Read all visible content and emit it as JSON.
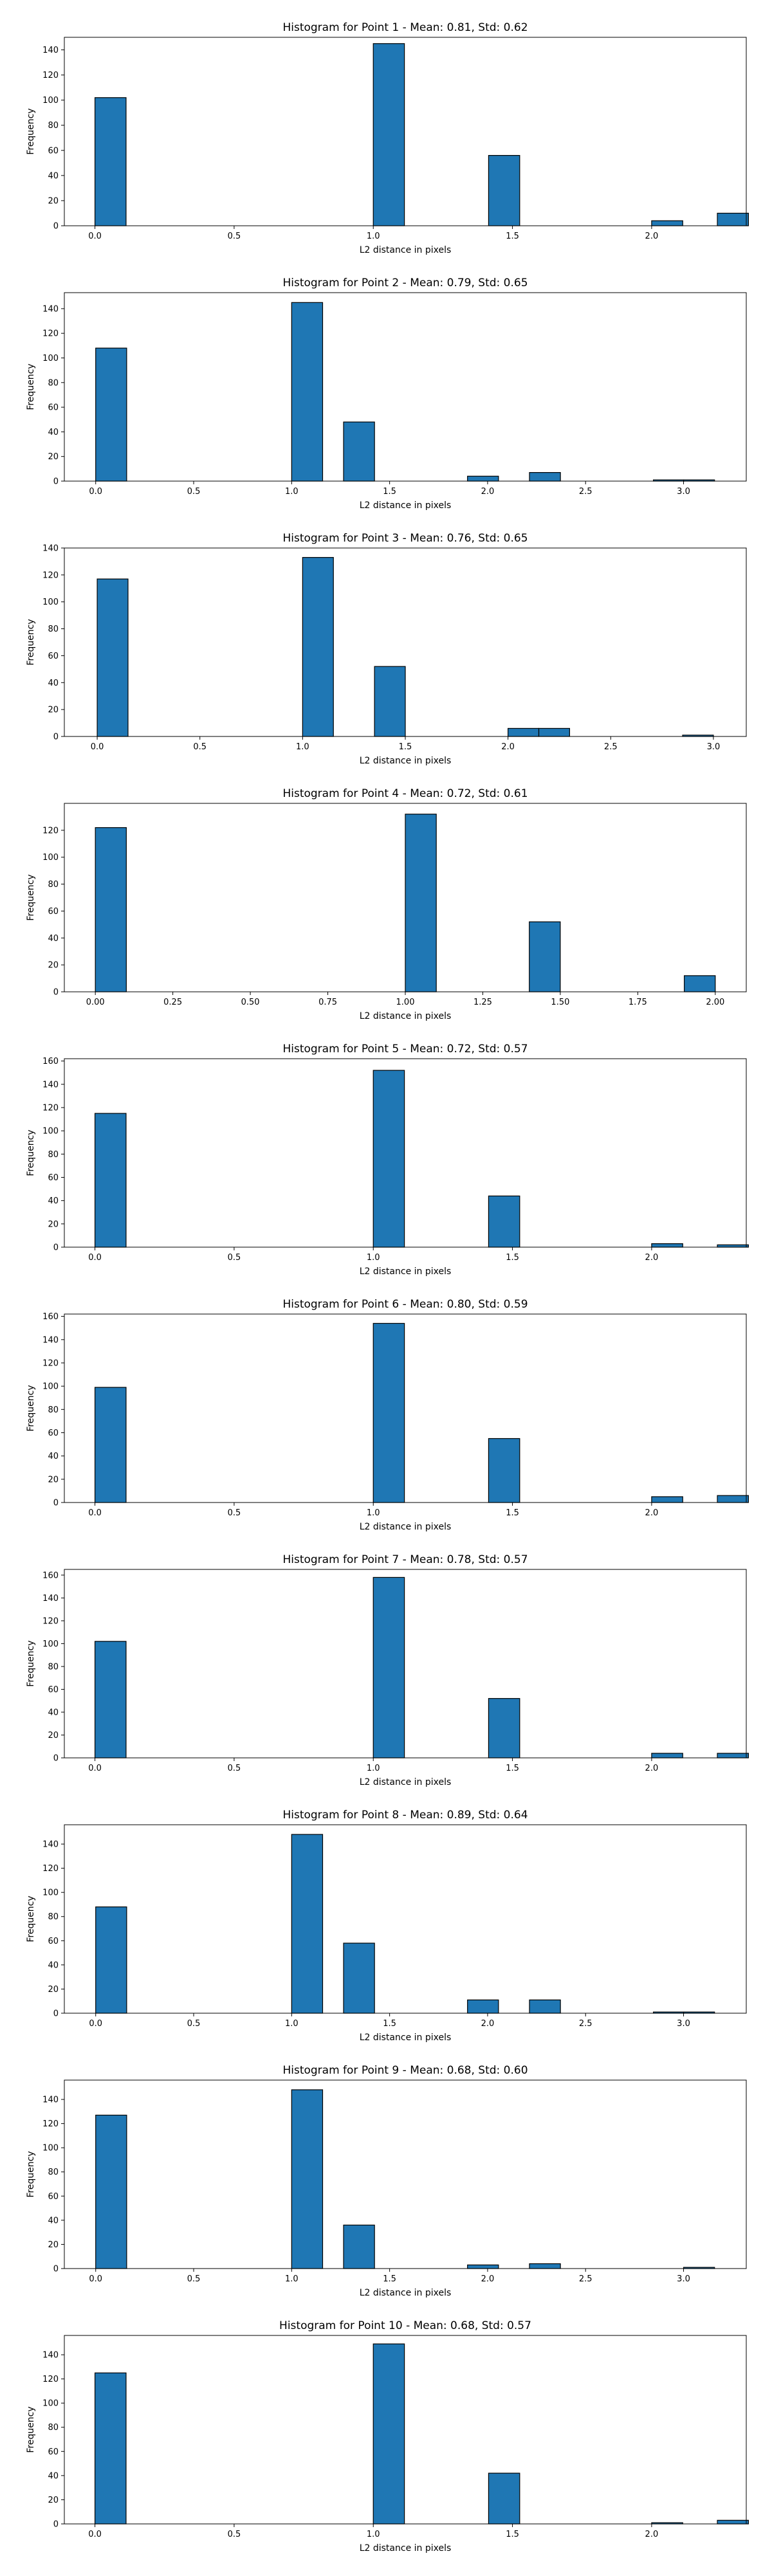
{
  "colors": {
    "bar_fill": "#1f77b4",
    "bar_edge": "#000000"
  },
  "chart_data": [
    {
      "type": "bar",
      "title": "Histogram for Point 1 - Mean: 0.81, Std: 0.62",
      "xlabel": "L2 distance in pixels",
      "ylabel": "Frequency",
      "xlim": [
        -0.11,
        2.34
      ],
      "ylim": [
        0,
        150
      ],
      "xticks": [
        0.0,
        0.5,
        1.0,
        1.5,
        2.0
      ],
      "xtick_labels": [
        "0.0",
        "0.5",
        "1.0",
        "1.5",
        "2.0"
      ],
      "yticks": [
        0,
        20,
        40,
        60,
        80,
        100,
        120,
        140
      ],
      "bar_width": 0.1118,
      "bars": [
        {
          "x": 0.0,
          "y": 102
        },
        {
          "x": 1.0,
          "y": 145
        },
        {
          "x": 1.4142,
          "y": 56
        },
        {
          "x": 2.0,
          "y": 4
        },
        {
          "x": 2.2361,
          "y": 10
        }
      ]
    },
    {
      "type": "bar",
      "title": "Histogram for Point 2 - Mean: 0.79, Std: 0.65",
      "xlabel": "L2 distance in pixels",
      "ylabel": "Frequency",
      "xlim": [
        -0.16,
        3.32
      ],
      "ylim": [
        0,
        153
      ],
      "xticks": [
        0.0,
        0.5,
        1.0,
        1.5,
        2.0,
        2.5,
        3.0
      ],
      "xtick_labels": [
        "0.0",
        "0.5",
        "1.0",
        "1.5",
        "2.0",
        "2.5",
        "3.0"
      ],
      "yticks": [
        0,
        20,
        40,
        60,
        80,
        100,
        120,
        140
      ],
      "bar_width": 0.1581,
      "bars": [
        {
          "x": 0.0,
          "y": 108
        },
        {
          "x": 1.0,
          "y": 145
        },
        {
          "x": 1.2649,
          "y": 48
        },
        {
          "x": 1.8974,
          "y": 4
        },
        {
          "x": 2.2136,
          "y": 7
        },
        {
          "x": 2.846,
          "y": 1
        },
        {
          "x": 3.0,
          "y": 1
        }
      ]
    },
    {
      "type": "bar",
      "title": "Histogram for Point 3 - Mean: 0.76, Std: 0.65",
      "xlabel": "L2 distance in pixels",
      "ylabel": "Frequency",
      "xlim": [
        -0.16,
        3.16
      ],
      "ylim": [
        0,
        140
      ],
      "xticks": [
        0.0,
        0.5,
        1.0,
        1.5,
        2.0,
        2.5,
        3.0
      ],
      "xtick_labels": [
        "0.0",
        "0.5",
        "1.0",
        "1.5",
        "2.0",
        "2.5",
        "3.0"
      ],
      "yticks": [
        0,
        20,
        40,
        60,
        80,
        100,
        120,
        140
      ],
      "bar_width": 0.15,
      "bars": [
        {
          "x": 0.0,
          "y": 117
        },
        {
          "x": 1.0,
          "y": 133
        },
        {
          "x": 1.35,
          "y": 52
        },
        {
          "x": 2.0,
          "y": 6
        },
        {
          "x": 2.15,
          "y": 6
        },
        {
          "x": 2.85,
          "y": 1
        }
      ]
    },
    {
      "type": "bar",
      "title": "Histogram for Point 4 - Mean: 0.72, Std: 0.61",
      "xlabel": "L2 distance in pixels",
      "ylabel": "Frequency",
      "xlim": [
        -0.1,
        2.1
      ],
      "ylim": [
        0,
        140
      ],
      "xticks": [
        0.0,
        0.25,
        0.5,
        0.75,
        1.0,
        1.25,
        1.5,
        1.75,
        2.0
      ],
      "xtick_labels": [
        "0.00",
        "0.25",
        "0.50",
        "0.75",
        "1.00",
        "1.25",
        "1.50",
        "1.75",
        "2.00"
      ],
      "yticks": [
        0,
        20,
        40,
        60,
        80,
        100,
        120
      ],
      "bar_width": 0.1,
      "bars": [
        {
          "x": 0.0,
          "y": 122
        },
        {
          "x": 1.0,
          "y": 132
        },
        {
          "x": 1.4,
          "y": 52
        },
        {
          "x": 1.9,
          "y": 12
        }
      ]
    },
    {
      "type": "bar",
      "title": "Histogram for Point 5 - Mean: 0.72, Std: 0.57",
      "xlabel": "L2 distance in pixels",
      "ylabel": "Frequency",
      "xlim": [
        -0.11,
        2.34
      ],
      "ylim": [
        0,
        162
      ],
      "xticks": [
        0.0,
        0.5,
        1.0,
        1.5,
        2.0
      ],
      "xtick_labels": [
        "0.0",
        "0.5",
        "1.0",
        "1.5",
        "2.0"
      ],
      "yticks": [
        0,
        20,
        40,
        60,
        80,
        100,
        120,
        140,
        160
      ],
      "bar_width": 0.1118,
      "bars": [
        {
          "x": 0.0,
          "y": 115
        },
        {
          "x": 1.0,
          "y": 152
        },
        {
          "x": 1.4142,
          "y": 44
        },
        {
          "x": 2.0,
          "y": 3
        },
        {
          "x": 2.2361,
          "y": 2
        }
      ]
    },
    {
      "type": "bar",
      "title": "Histogram for Point 6 - Mean: 0.80, Std: 0.59",
      "xlabel": "L2 distance in pixels",
      "ylabel": "Frequency",
      "xlim": [
        -0.11,
        2.34
      ],
      "ylim": [
        0,
        162
      ],
      "xticks": [
        0.0,
        0.5,
        1.0,
        1.5,
        2.0
      ],
      "xtick_labels": [
        "0.0",
        "0.5",
        "1.0",
        "1.5",
        "2.0"
      ],
      "yticks": [
        0,
        20,
        40,
        60,
        80,
        100,
        120,
        140,
        160
      ],
      "bar_width": 0.1118,
      "bars": [
        {
          "x": 0.0,
          "y": 99
        },
        {
          "x": 1.0,
          "y": 154
        },
        {
          "x": 1.4142,
          "y": 55
        },
        {
          "x": 2.0,
          "y": 5
        },
        {
          "x": 2.2361,
          "y": 6
        }
      ]
    },
    {
      "type": "bar",
      "title": "Histogram for Point 7 - Mean: 0.78, Std: 0.57",
      "xlabel": "L2 distance in pixels",
      "ylabel": "Frequency",
      "xlim": [
        -0.11,
        2.34
      ],
      "ylim": [
        0,
        165
      ],
      "xticks": [
        0.0,
        0.5,
        1.0,
        1.5,
        2.0
      ],
      "xtick_labels": [
        "0.0",
        "0.5",
        "1.0",
        "1.5",
        "2.0"
      ],
      "yticks": [
        0,
        20,
        40,
        60,
        80,
        100,
        120,
        140,
        160
      ],
      "bar_width": 0.1118,
      "bars": [
        {
          "x": 0.0,
          "y": 102
        },
        {
          "x": 1.0,
          "y": 158
        },
        {
          "x": 1.4142,
          "y": 52
        },
        {
          "x": 2.0,
          "y": 4
        },
        {
          "x": 2.2361,
          "y": 4
        }
      ]
    },
    {
      "type": "bar",
      "title": "Histogram for Point 8 - Mean: 0.89, Std: 0.64",
      "xlabel": "L2 distance in pixels",
      "ylabel": "Frequency",
      "xlim": [
        -0.16,
        3.32
      ],
      "ylim": [
        0,
        156
      ],
      "xticks": [
        0.0,
        0.5,
        1.0,
        1.5,
        2.0,
        2.5,
        3.0
      ],
      "xtick_labels": [
        "0.0",
        "0.5",
        "1.0",
        "1.5",
        "2.0",
        "2.5",
        "3.0"
      ],
      "yticks": [
        0,
        20,
        40,
        60,
        80,
        100,
        120,
        140
      ],
      "bar_width": 0.1581,
      "bars": [
        {
          "x": 0.0,
          "y": 88
        },
        {
          "x": 1.0,
          "y": 148
        },
        {
          "x": 1.2649,
          "y": 58
        },
        {
          "x": 1.8974,
          "y": 11
        },
        {
          "x": 2.2136,
          "y": 11
        },
        {
          "x": 2.846,
          "y": 1
        },
        {
          "x": 3.0,
          "y": 1
        }
      ]
    },
    {
      "type": "bar",
      "title": "Histogram for Point 9 - Mean: 0.68, Std: 0.60",
      "xlabel": "L2 distance in pixels",
      "ylabel": "Frequency",
      "xlim": [
        -0.16,
        3.32
      ],
      "ylim": [
        0,
        156
      ],
      "xticks": [
        0.0,
        0.5,
        1.0,
        1.5,
        2.0,
        2.5,
        3.0
      ],
      "xtick_labels": [
        "0.0",
        "0.5",
        "1.0",
        "1.5",
        "2.0",
        "2.5",
        "3.0"
      ],
      "yticks": [
        0,
        20,
        40,
        60,
        80,
        100,
        120,
        140
      ],
      "bar_width": 0.1581,
      "bars": [
        {
          "x": 0.0,
          "y": 127
        },
        {
          "x": 1.0,
          "y": 148
        },
        {
          "x": 1.2649,
          "y": 36
        },
        {
          "x": 1.8974,
          "y": 3
        },
        {
          "x": 2.2136,
          "y": 4
        },
        {
          "x": 3.0,
          "y": 1
        }
      ]
    },
    {
      "type": "bar",
      "title": "Histogram for Point 10 - Mean: 0.68, Std: 0.57",
      "xlabel": "L2 distance in pixels",
      "ylabel": "Frequency",
      "xlim": [
        -0.11,
        2.34
      ],
      "ylim": [
        0,
        156
      ],
      "xticks": [
        0.0,
        0.5,
        1.0,
        1.5,
        2.0
      ],
      "xtick_labels": [
        "0.0",
        "0.5",
        "1.0",
        "1.5",
        "2.0"
      ],
      "yticks": [
        0,
        20,
        40,
        60,
        80,
        100,
        120,
        140
      ],
      "bar_width": 0.1118,
      "bars": [
        {
          "x": 0.0,
          "y": 125
        },
        {
          "x": 1.0,
          "y": 149
        },
        {
          "x": 1.4142,
          "y": 42
        },
        {
          "x": 2.0,
          "y": 1
        },
        {
          "x": 2.2361,
          "y": 3
        }
      ]
    }
  ]
}
